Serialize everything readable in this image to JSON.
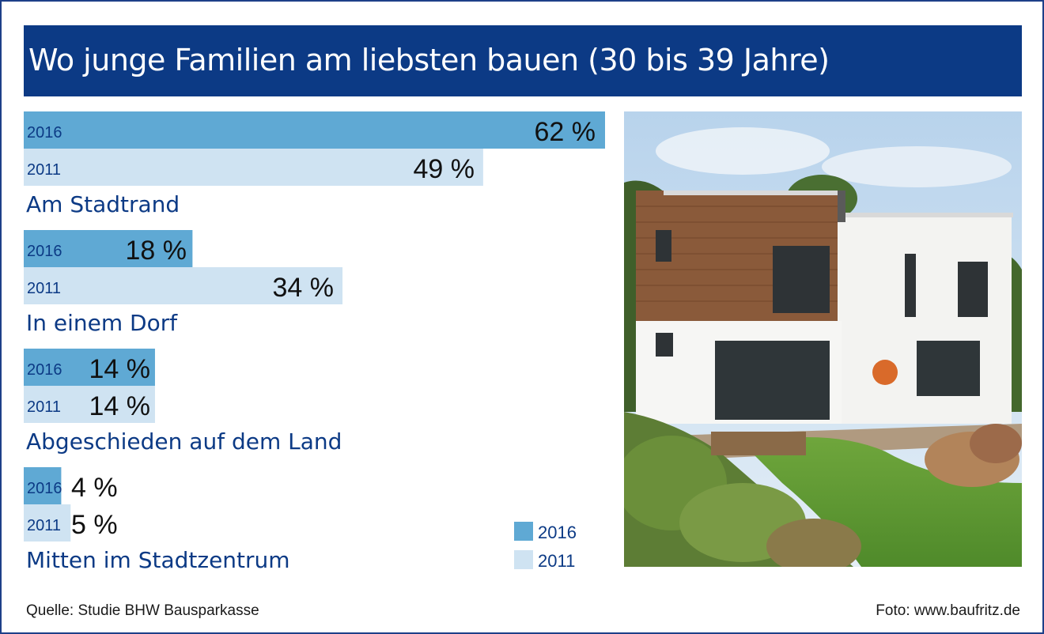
{
  "title": "Wo junge Familien am liebsten bauen (30 bis 39 Jahre)",
  "source": "Quelle: Studie BHW Bausparkasse",
  "photo_credit": "Foto: www.baufritz.de",
  "chart_data": {
    "type": "bar",
    "orientation": "horizontal",
    "title": "Wo junge Familien am liebsten bauen (30 bis 39 Jahre)",
    "categories": [
      "Am Stadtrand",
      "In einem Dorf",
      "Abgeschieden auf dem Land",
      "Mitten im Stadtzentrum"
    ],
    "series": [
      {
        "name": "2016",
        "values": [
          62,
          18,
          14,
          4
        ],
        "labels": [
          "62 %",
          "18 %",
          "14 %",
          "4 %"
        ],
        "color": "#5fa9d4"
      },
      {
        "name": "2011",
        "values": [
          49,
          34,
          14,
          5
        ],
        "labels": [
          "49 %",
          "34 %",
          "14 %",
          "5 %"
        ],
        "color": "#cfe3f2"
      }
    ],
    "unit": "%",
    "legend": {
      "position": "bottom-right",
      "entries": [
        "2016",
        "2011"
      ]
    },
    "grid": false
  },
  "colors": {
    "header_bg": "#0c3a85",
    "text_blue": "#0c3a85",
    "bar_2016": "#5fa9d4",
    "bar_2011": "#cfe3f2"
  }
}
